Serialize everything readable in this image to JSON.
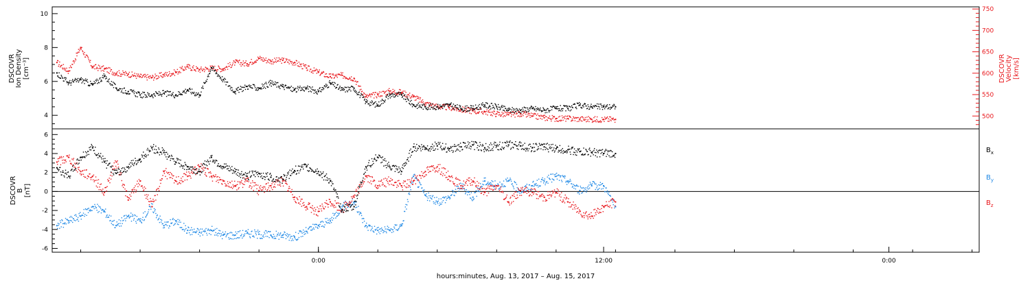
{
  "chart_data": [
    {
      "type": "scatter",
      "ylabel_lines": [
        "DSCOVR",
        "Ion Density",
        "[cm⁻³]"
      ],
      "y2label_lines": [
        "DSCOVR",
        "Velocity",
        "[km/s]"
      ],
      "ylim": [
        3.2,
        10.4
      ],
      "y2lim": [
        470,
        755
      ],
      "yticks": [
        4,
        6,
        8,
        10
      ],
      "y2ticks": [
        500,
        550,
        600,
        650,
        700,
        750
      ],
      "series": [
        {
          "key": "density",
          "axis": "left",
          "color": "#000000",
          "x": [
            -11,
            -10.5,
            -10,
            -9.5,
            -9,
            -8.5,
            -8,
            -7.5,
            -7,
            -6.5,
            -6,
            -5.5,
            -5,
            -4.5,
            -4,
            -3.5,
            -3,
            -2.5,
            -2,
            -1.5,
            -1,
            -0.5,
            0,
            0.5,
            1,
            1.5,
            2,
            2.5,
            3,
            3.5,
            4,
            4.5,
            5,
            5.5,
            6,
            6.5,
            7,
            7.5,
            8,
            8.5,
            9,
            9.5,
            10,
            10.5,
            11,
            11.5,
            12,
            12.5
          ],
          "y": [
            6.5,
            5.9,
            6.1,
            5.8,
            6.3,
            5.6,
            5.4,
            5.2,
            5.2,
            5.3,
            5.2,
            5.5,
            5.2,
            6.8,
            6.1,
            5.4,
            5.7,
            5.6,
            5.9,
            5.7,
            5.5,
            5.6,
            5.4,
            5.9,
            5.5,
            5.6,
            4.8,
            4.6,
            5.2,
            5.2,
            4.6,
            4.5,
            4.5,
            4.6,
            4.4,
            4.4,
            4.6,
            4.5,
            4.3,
            4.3,
            4.4,
            4.3,
            4.4,
            4.4,
            4.6,
            4.5,
            4.5,
            4.5
          ]
        },
        {
          "key": "velocity",
          "axis": "right",
          "color": "#e8161b",
          "x": [
            -11,
            -10.5,
            -10,
            -9.5,
            -9,
            -8.5,
            -8,
            -7.5,
            -7,
            -6.5,
            -6,
            -5.5,
            -5,
            -4.5,
            -4,
            -3.5,
            -3,
            -2.5,
            -2,
            -1.5,
            -1,
            -0.5,
            0,
            0.5,
            1,
            1.5,
            2,
            2.5,
            3,
            3.5,
            4,
            4.5,
            5,
            5.5,
            6,
            6.5,
            7,
            7.5,
            8,
            8.5,
            9,
            9.5,
            10,
            10.5,
            11,
            11.5,
            12,
            12.5
          ],
          "y": [
            625,
            605,
            660,
            615,
            610,
            600,
            598,
            592,
            590,
            596,
            602,
            615,
            608,
            612,
            610,
            625,
            622,
            635,
            628,
            630,
            625,
            612,
            602,
            592,
            595,
            588,
            545,
            550,
            558,
            555,
            545,
            530,
            522,
            520,
            515,
            512,
            510,
            505,
            503,
            505,
            500,
            496,
            494,
            494,
            493,
            492,
            492,
            492
          ]
        }
      ]
    },
    {
      "type": "scatter",
      "ylabel_lines": [
        "DSCOVR",
        "B",
        "[nT]"
      ],
      "ylim": [
        -6.4,
        6.6
      ],
      "yticks": [
        -6,
        -4,
        -2,
        0,
        2,
        4,
        6
      ],
      "xlabel": "hours:minutes, Aug. 13, 2017 – Aug. 15, 2017",
      "xticks": [
        {
          "x": 0,
          "label": "0:00"
        },
        {
          "x": 12,
          "label": "12:00"
        },
        {
          "x": 24,
          "label": "0:00"
        }
      ],
      "xlim": [
        -11.2,
        27.8
      ],
      "series": [
        {
          "key": "bx",
          "name": "B",
          "sub": "x",
          "color": "#000000",
          "x": [
            -11,
            -10.5,
            -10,
            -9.5,
            -9,
            -8.5,
            -8,
            -7.5,
            -7,
            -6.5,
            -6,
            -5.5,
            -5,
            -4.5,
            -4,
            -3.5,
            -3,
            -2.5,
            -2,
            -1.5,
            -1,
            -0.5,
            0,
            0.5,
            1,
            1.5,
            2,
            2.5,
            3,
            3.5,
            4,
            4.5,
            5,
            5.5,
            6,
            6.5,
            7,
            7.5,
            8,
            8.5,
            9,
            9.5,
            10,
            10.5,
            11,
            11.5,
            12,
            12.5
          ],
          "y": [
            2.5,
            1.6,
            3.6,
            4.6,
            3.1,
            1.9,
            2.6,
            3.4,
            4.6,
            4.1,
            3.1,
            2.6,
            2.1,
            3.6,
            2.6,
            2.1,
            1.6,
            1.9,
            1.5,
            1.3,
            2.2,
            2.6,
            2.1,
            1.1,
            -1.9,
            -1.6,
            2.6,
            3.6,
            2.6,
            2.1,
            4.7,
            4.6,
            4.8,
            4.5,
            4.7,
            4.9,
            4.6,
            4.8,
            4.9,
            4.8,
            4.6,
            4.7,
            4.5,
            4.4,
            4.2,
            4.1,
            4.0,
            4.0
          ]
        },
        {
          "key": "by",
          "name": "B",
          "sub": "y",
          "color": "#1e88e5",
          "x": [
            -11,
            -10.5,
            -10,
            -9.5,
            -9,
            -8.5,
            -8,
            -7.5,
            -7,
            -6.5,
            -6,
            -5.5,
            -5,
            -4.5,
            -4,
            -3.5,
            -3,
            -2.5,
            -2,
            -1.5,
            -1,
            -0.5,
            0,
            0.5,
            1,
            1.5,
            2,
            2.5,
            3,
            3.5,
            4,
            4.5,
            5,
            5.5,
            6,
            6.5,
            7,
            7.5,
            8,
            8.5,
            9,
            9.5,
            10,
            10.5,
            11,
            11.5,
            12,
            12.5
          ],
          "y": [
            -3.6,
            -3.1,
            -2.6,
            -1.6,
            -2.1,
            -3.6,
            -2.6,
            -3.1,
            -1.6,
            -3.6,
            -3.1,
            -4.1,
            -4.3,
            -4.1,
            -4.6,
            -4.6,
            -4.4,
            -4.5,
            -4.6,
            -4.6,
            -4.8,
            -4.2,
            -3.6,
            -3.1,
            -1.6,
            -1.1,
            -3.6,
            -4.1,
            -4.1,
            -3.6,
            1.6,
            -0.4,
            -1.1,
            -0.6,
            0.6,
            -0.6,
            1.1,
            0.6,
            1.1,
            0.1,
            0.6,
            1.1,
            1.6,
            1.1,
            0.1,
            0.6,
            0.6,
            -1.6
          ]
        },
        {
          "key": "bz",
          "name": "B",
          "sub": "z",
          "color": "#e8161b",
          "x": [
            -11,
            -10.5,
            -10,
            -9.5,
            -9,
            -8.5,
            -8,
            -7.5,
            -7,
            -6.5,
            -6,
            -5.5,
            -5,
            -4.5,
            -4,
            -3.5,
            -3,
            -2.5,
            -2,
            -1.5,
            -1,
            -0.5,
            0,
            0.5,
            1,
            1.5,
            2,
            2.5,
            3,
            3.5,
            4,
            4.5,
            5,
            5.5,
            6,
            6.5,
            7,
            7.5,
            8,
            8.5,
            9,
            9.5,
            10,
            10.5,
            11,
            11.5,
            12,
            12.5
          ],
          "y": [
            3.1,
            3.6,
            2.1,
            1.6,
            -0.1,
            3.1,
            -0.9,
            1.1,
            -1.6,
            2.1,
            1.1,
            1.6,
            2.6,
            1.6,
            1.1,
            0.6,
            1.1,
            0.1,
            0.6,
            1.1,
            -0.6,
            -1.6,
            -2.1,
            -1.1,
            -1.9,
            -0.6,
            1.6,
            0.6,
            1.1,
            0.6,
            1.1,
            2.1,
            2.6,
            1.6,
            0.6,
            1.1,
            -0.1,
            0.6,
            -1.1,
            0.1,
            -0.1,
            -0.6,
            -0.1,
            -1.1,
            -2.1,
            -2.6,
            -1.6,
            -1.1
          ]
        }
      ]
    }
  ]
}
